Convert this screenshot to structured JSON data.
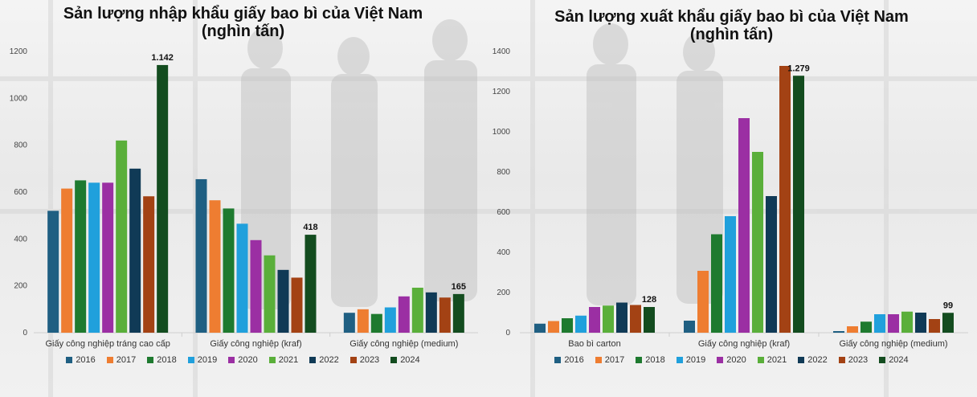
{
  "colors": {
    "2016": "#1f5f82",
    "2017": "#ee7d31",
    "2018": "#1e7a2f",
    "2019": "#20a0dc",
    "2020": "#9b2fa3",
    "2021": "#5aaf3a",
    "2022": "#103a56",
    "2023": "#a34214",
    "2024": "#134c1f"
  },
  "chart_data": [
    {
      "type": "bar",
      "title": "Sản lượng nhập khẩu giấy bao bì của Việt Nam",
      "subtitle": "(nghìn tấn)",
      "categories": [
        "Giấy công nghiệp tráng cao cấp",
        "Giấy công nghiệp (kraf)",
        "Giấy công nghiệp (medium)"
      ],
      "ylim": [
        0,
        1200
      ],
      "yticks": [
        "0",
        "200",
        "400",
        "600",
        "800",
        "1000",
        "1200"
      ],
      "series": [
        {
          "name": "2016",
          "values": [
            520,
            655,
            85
          ]
        },
        {
          "name": "2017",
          "values": [
            615,
            565,
            100
          ]
        },
        {
          "name": "2018",
          "values": [
            650,
            530,
            80
          ]
        },
        {
          "name": "2019",
          "values": [
            640,
            465,
            108
          ]
        },
        {
          "name": "2020",
          "values": [
            640,
            395,
            155
          ]
        },
        {
          "name": "2021",
          "values": [
            820,
            330,
            192
          ]
        },
        {
          "name": "2022",
          "values": [
            700,
            268,
            172
          ]
        },
        {
          "name": "2023",
          "values": [
            582,
            235,
            150
          ]
        },
        {
          "name": "2024",
          "values": [
            1142,
            418,
            165
          ]
        }
      ],
      "data_labels": [
        "1.142",
        "418",
        "165"
      ],
      "legend": "bottom",
      "grid": false
    },
    {
      "type": "bar",
      "title": "Sản lượng xuất khẩu giấy bao bì của Việt Nam",
      "subtitle": "(nghìn tấn)",
      "categories": [
        "Bao bì carton",
        "Giấy công nghiệp (kraf)",
        "Giấy công nghiệp (medium)"
      ],
      "ylim": [
        0,
        1400
      ],
      "yticks": [
        "0",
        "200",
        "400",
        "600",
        "800",
        "1000",
        "1200",
        "1400"
      ],
      "series": [
        {
          "name": "2016",
          "values": [
            45,
            60,
            8
          ]
        },
        {
          "name": "2017",
          "values": [
            58,
            308,
            32
          ]
        },
        {
          "name": "2018",
          "values": [
            72,
            490,
            55
          ]
        },
        {
          "name": "2019",
          "values": [
            85,
            580,
            92
          ]
        },
        {
          "name": "2020",
          "values": [
            128,
            1068,
            92
          ]
        },
        {
          "name": "2021",
          "values": [
            135,
            900,
            105
          ]
        },
        {
          "name": "2022",
          "values": [
            150,
            680,
            100
          ]
        },
        {
          "name": "2023",
          "values": [
            138,
            1328,
            68
          ]
        },
        {
          "name": "2024",
          "values": [
            128,
            1279,
            99
          ]
        }
      ],
      "data_labels": [
        "128",
        "1.279",
        "99"
      ],
      "legend": "bottom",
      "grid": false
    }
  ]
}
